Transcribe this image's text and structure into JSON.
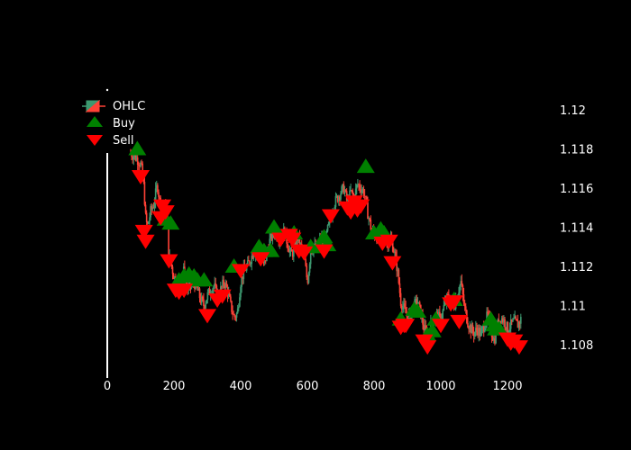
{
  "chart_data": {
    "type": "candlestick",
    "title": "",
    "xlabel": "",
    "ylabel": "",
    "xlim": [
      0,
      1280
    ],
    "ylim": [
      1.1066,
      1.1215
    ],
    "x_ticks": [
      0,
      200,
      400,
      600,
      800,
      1000,
      1200
    ],
    "y_ticks": [
      1.108,
      1.11,
      1.112,
      1.114,
      1.116,
      1.118,
      1.12
    ],
    "y_axis_side": "right",
    "grid": false,
    "legend_position": "top-left",
    "background": "#000000",
    "colors": {
      "increasing": "#3d9970",
      "decreasing": "#ff4136",
      "buy": "#008000",
      "sell": "#ff0000",
      "axis": "#ffffff"
    },
    "legend": [
      {
        "name": "OHLC",
        "symbol": "candlestick-icon"
      },
      {
        "name": "Buy",
        "symbol": "triangle-up-icon"
      },
      {
        "name": "Sell",
        "symbol": "triangle-down-icon"
      }
    ],
    "price_path": [
      [
        70,
        1.1178
      ],
      [
        90,
        1.1175
      ],
      [
        100,
        1.1172
      ],
      [
        105,
        1.1168
      ],
      [
        110,
        1.116
      ],
      [
        115,
        1.1145
      ],
      [
        120,
        1.114
      ],
      [
        130,
        1.1148
      ],
      [
        140,
        1.1152
      ],
      [
        150,
        1.1162
      ],
      [
        160,
        1.115
      ],
      [
        170,
        1.1152
      ],
      [
        180,
        1.114
      ],
      [
        185,
        1.1125
      ],
      [
        190,
        1.1122
      ],
      [
        200,
        1.1115
      ],
      [
        210,
        1.111
      ],
      [
        220,
        1.1112
      ],
      [
        230,
        1.1118
      ],
      [
        240,
        1.1108
      ],
      [
        250,
        1.111
      ],
      [
        260,
        1.1112
      ],
      [
        270,
        1.1108
      ],
      [
        280,
        1.1103
      ],
      [
        290,
        1.11
      ],
      [
        300,
        1.1105
      ],
      [
        310,
        1.1108
      ],
      [
        320,
        1.111
      ],
      [
        330,
        1.1105
      ],
      [
        340,
        1.1108
      ],
      [
        350,
        1.1112
      ],
      [
        360,
        1.1108
      ],
      [
        370,
        1.11
      ],
      [
        380,
        1.1094
      ],
      [
        390,
        1.1096
      ],
      [
        400,
        1.1112
      ],
      [
        410,
        1.1118
      ],
      [
        420,
        1.112
      ],
      [
        430,
        1.1124
      ],
      [
        440,
        1.1128
      ],
      [
        450,
        1.1126
      ],
      [
        460,
        1.1124
      ],
      [
        470,
        1.112
      ],
      [
        480,
        1.1128
      ],
      [
        490,
        1.1135
      ],
      [
        500,
        1.1138
      ],
      [
        510,
        1.1136
      ],
      [
        520,
        1.1134
      ],
      [
        530,
        1.1138
      ],
      [
        540,
        1.1132
      ],
      [
        550,
        1.1126
      ],
      [
        560,
        1.1128
      ],
      [
        570,
        1.1135
      ],
      [
        580,
        1.113
      ],
      [
        590,
        1.1125
      ],
      [
        600,
        1.1112
      ],
      [
        610,
        1.1128
      ],
      [
        620,
        1.113
      ],
      [
        630,
        1.1128
      ],
      [
        640,
        1.1135
      ],
      [
        650,
        1.113
      ],
      [
        660,
        1.1138
      ],
      [
        670,
        1.1145
      ],
      [
        680,
        1.1152
      ],
      [
        690,
        1.1155
      ],
      [
        700,
        1.1158
      ],
      [
        710,
        1.116
      ],
      [
        720,
        1.1152
      ],
      [
        730,
        1.1158
      ],
      [
        740,
        1.1155
      ],
      [
        750,
        1.1162
      ],
      [
        760,
        1.116
      ],
      [
        770,
        1.1158
      ],
      [
        780,
        1.1148
      ],
      [
        790,
        1.114
      ],
      [
        800,
        1.1136
      ],
      [
        810,
        1.1135
      ],
      [
        820,
        1.1138
      ],
      [
        830,
        1.1136
      ],
      [
        840,
        1.1132
      ],
      [
        850,
        1.1134
      ],
      [
        860,
        1.1128
      ],
      [
        870,
        1.1118
      ],
      [
        880,
        1.1102
      ],
      [
        890,
        1.1098
      ],
      [
        900,
        1.1094
      ],
      [
        910,
        1.1096
      ],
      [
        920,
        1.11
      ],
      [
        930,
        1.1102
      ],
      [
        940,
        1.1096
      ],
      [
        950,
        1.1088
      ],
      [
        960,
        1.1085
      ],
      [
        970,
        1.109
      ],
      [
        980,
        1.1093
      ],
      [
        990,
        1.1095
      ],
      [
        1000,
        1.1092
      ],
      [
        1010,
        1.11
      ],
      [
        1020,
        1.1104
      ],
      [
        1030,
        1.1102
      ],
      [
        1040,
        1.11
      ],
      [
        1050,
        1.1106
      ],
      [
        1060,
        1.1112
      ],
      [
        1070,
        1.11
      ],
      [
        1080,
        1.1092
      ],
      [
        1090,
        1.1088
      ],
      [
        1100,
        1.1086
      ],
      [
        1110,
        1.1088
      ],
      [
        1120,
        1.1085
      ],
      [
        1130,
        1.109
      ],
      [
        1140,
        1.1095
      ],
      [
        1150,
        1.1088
      ],
      [
        1160,
        1.1082
      ],
      [
        1170,
        1.109
      ],
      [
        1180,
        1.1094
      ],
      [
        1190,
        1.1092
      ],
      [
        1200,
        1.1088
      ],
      [
        1210,
        1.109
      ],
      [
        1220,
        1.1092
      ],
      [
        1230,
        1.109
      ],
      [
        1240,
        1.1093
      ]
    ],
    "buy_signals": [
      [
        90,
        1.118
      ],
      [
        175,
        1.1144
      ],
      [
        190,
        1.1142
      ],
      [
        215,
        1.1113
      ],
      [
        230,
        1.1115
      ],
      [
        245,
        1.1116
      ],
      [
        260,
        1.1115
      ],
      [
        270,
        1.1113
      ],
      [
        290,
        1.1113
      ],
      [
        380,
        1.112
      ],
      [
        455,
        1.113
      ],
      [
        470,
        1.1128
      ],
      [
        490,
        1.1128
      ],
      [
        500,
        1.114
      ],
      [
        560,
        1.1137
      ],
      [
        610,
        1.113
      ],
      [
        635,
        1.113
      ],
      [
        650,
        1.1135
      ],
      [
        660,
        1.1131
      ],
      [
        775,
        1.1171
      ],
      [
        800,
        1.1137
      ],
      [
        820,
        1.1139
      ],
      [
        830,
        1.1137
      ],
      [
        880,
        1.1093
      ],
      [
        920,
        1.1098
      ],
      [
        930,
        1.1097
      ],
      [
        960,
        1.1085
      ],
      [
        975,
        1.1087
      ],
      [
        985,
        1.1093
      ],
      [
        1040,
        1.1103
      ],
      [
        1150,
        1.1093
      ],
      [
        1160,
        1.109
      ],
      [
        1165,
        1.1088
      ],
      [
        1175,
        1.1088
      ]
    ],
    "sell_signals": [
      [
        100,
        1.1166
      ],
      [
        110,
        1.1138
      ],
      [
        115,
        1.1133
      ],
      [
        160,
        1.1145
      ],
      [
        165,
        1.1151
      ],
      [
        175,
        1.1148
      ],
      [
        185,
        1.1123
      ],
      [
        205,
        1.1108
      ],
      [
        215,
        1.1107
      ],
      [
        230,
        1.1108
      ],
      [
        300,
        1.1095
      ],
      [
        330,
        1.1103
      ],
      [
        345,
        1.1105
      ],
      [
        400,
        1.1118
      ],
      [
        460,
        1.1124
      ],
      [
        520,
        1.1134
      ],
      [
        545,
        1.1136
      ],
      [
        555,
        1.1134
      ],
      [
        575,
        1.1128
      ],
      [
        590,
        1.1127
      ],
      [
        650,
        1.1128
      ],
      [
        670,
        1.1146
      ],
      [
        720,
        1.115
      ],
      [
        730,
        1.1148
      ],
      [
        740,
        1.1153
      ],
      [
        750,
        1.1149
      ],
      [
        760,
        1.1151
      ],
      [
        825,
        1.1132
      ],
      [
        845,
        1.1133
      ],
      [
        855,
        1.1122
      ],
      [
        880,
        1.1089
      ],
      [
        890,
        1.109
      ],
      [
        895,
        1.109
      ],
      [
        950,
        1.1082
      ],
      [
        960,
        1.1079
      ],
      [
        1000,
        1.109
      ],
      [
        1030,
        1.1101
      ],
      [
        1040,
        1.1102
      ],
      [
        1055,
        1.1092
      ],
      [
        1200,
        1.1083
      ],
      [
        1210,
        1.1081
      ],
      [
        1220,
        1.1082
      ],
      [
        1235,
        1.1079
      ]
    ]
  }
}
